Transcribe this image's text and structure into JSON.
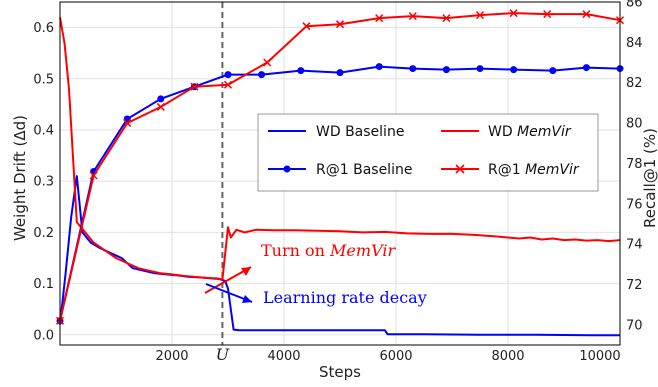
{
  "chart_data": {
    "type": "line",
    "title": "",
    "xlabel": "Steps",
    "ylabel_left": "Weight Drift (Δd)",
    "ylabel_right": "Recall@1 (%)",
    "xlim": [
      0,
      10000
    ],
    "ylim_left": [
      -0.02,
      0.65
    ],
    "ylim_right": [
      69,
      86
    ],
    "x_ticks": [
      2000,
      4000,
      6000,
      8000,
      10000
    ],
    "x_tick_labels": [
      "2000",
      "4000",
      "6000",
      "8000",
      "10000"
    ],
    "y_left_ticks": [
      0.0,
      0.1,
      0.2,
      0.3,
      0.4,
      0.5,
      0.6
    ],
    "y_left_tick_labels": [
      "0.0",
      "0.1",
      "0.2",
      "0.3",
      "0.4",
      "0.5",
      "0.6"
    ],
    "y_right_ticks": [
      70,
      72,
      74,
      76,
      78,
      80,
      82,
      84,
      86
    ],
    "y_right_tick_labels": [
      "70",
      "72",
      "74",
      "76",
      "78",
      "80",
      "82",
      "84",
      "86"
    ],
    "grid": true,
    "legend_position": "center-right",
    "vline": {
      "x": 2900,
      "label": "U"
    },
    "series": [
      {
        "name": "WD Baseline",
        "axis": "left",
        "color": "#0000ff",
        "marker": "none",
        "x": [
          0,
          100,
          200,
          300,
          400,
          550,
          700,
          900,
          1100,
          1300,
          1500,
          1700,
          1900,
          2100,
          2300,
          2500,
          2700,
          2850,
          2950,
          3000,
          3100,
          3200,
          3500,
          4000,
          5000,
          5500,
          5800,
          5850,
          6500,
          7500,
          8500,
          9500,
          10000
        ],
        "y": [
          0.02,
          0.12,
          0.23,
          0.31,
          0.2,
          0.18,
          0.17,
          0.16,
          0.15,
          0.13,
          0.125,
          0.12,
          0.118,
          0.116,
          0.113,
          0.112,
          0.11,
          0.109,
          0.105,
          0.09,
          0.01,
          0.009,
          0.009,
          0.009,
          0.009,
          0.009,
          0.009,
          0.001,
          0.001,
          0.0,
          0.0,
          -0.001,
          -0.001
        ]
      },
      {
        "name": "WD MemVir",
        "axis": "left",
        "color": "#ff0000",
        "marker": "none",
        "x": [
          0,
          80,
          160,
          230,
          300,
          450,
          600,
          800,
          1000,
          1200,
          1400,
          1600,
          1800,
          2000,
          2200,
          2400,
          2600,
          2800,
          2900,
          3000,
          3050,
          3150,
          3300,
          3500,
          3800,
          4200,
          4600,
          5000,
          5400,
          5800,
          6200,
          6600,
          7000,
          7400,
          7800,
          8000,
          8200,
          8400,
          8600,
          8800,
          9000,
          9200,
          9400,
          9600,
          9800,
          10000
        ],
        "y": [
          0.62,
          0.57,
          0.48,
          0.35,
          0.22,
          0.2,
          0.18,
          0.165,
          0.15,
          0.14,
          0.13,
          0.125,
          0.12,
          0.118,
          0.115,
          0.113,
          0.111,
          0.11,
          0.108,
          0.21,
          0.19,
          0.205,
          0.2,
          0.205,
          0.204,
          0.204,
          0.203,
          0.202,
          0.2,
          0.201,
          0.198,
          0.197,
          0.197,
          0.195,
          0.192,
          0.19,
          0.188,
          0.19,
          0.186,
          0.188,
          0.185,
          0.186,
          0.184,
          0.185,
          0.183,
          0.185
        ]
      },
      {
        "name": "R@1 Baseline",
        "axis": "right",
        "color": "#0000ff",
        "marker": "o",
        "x": [
          0,
          600,
          1200,
          1800,
          2400,
          3000,
          3600,
          4300,
          5000,
          5700,
          6300,
          6900,
          7500,
          8100,
          8800,
          9400,
          10000
        ],
        "y": [
          70.2,
          77.6,
          80.2,
          81.2,
          81.8,
          82.4,
          82.4,
          82.6,
          82.5,
          82.8,
          82.7,
          82.65,
          82.7,
          82.65,
          82.6,
          82.75,
          82.7
        ]
      },
      {
        "name": "R@1 MemVir",
        "axis": "right",
        "color": "#ff0000",
        "marker": "x",
        "x": [
          0,
          600,
          1200,
          1800,
          2400,
          3000,
          3700,
          4400,
          5000,
          5700,
          6300,
          6900,
          7500,
          8100,
          8700,
          9400,
          10000
        ],
        "y": [
          70.2,
          77.4,
          80.0,
          80.8,
          81.8,
          81.9,
          83.0,
          84.8,
          84.9,
          85.2,
          85.3,
          85.2,
          85.35,
          85.45,
          85.4,
          85.4,
          85.1
        ]
      }
    ],
    "annotations": [
      {
        "text": "Turn on MemVir",
        "color": "#ff0000"
      },
      {
        "text": "Learning rate decay",
        "color": "#0000ff"
      }
    ]
  },
  "legend": {
    "items": [
      {
        "label": "WD Baseline",
        "color": "#0000ff",
        "marker": "none"
      },
      {
        "label": "WD MemVir",
        "color": "#ff0000",
        "marker": "none"
      },
      {
        "label": "R@1 Baseline",
        "color": "#0000ff",
        "marker": "o"
      },
      {
        "label": "R@1 MemVir",
        "color": "#ff0000",
        "marker": "x"
      }
    ]
  }
}
